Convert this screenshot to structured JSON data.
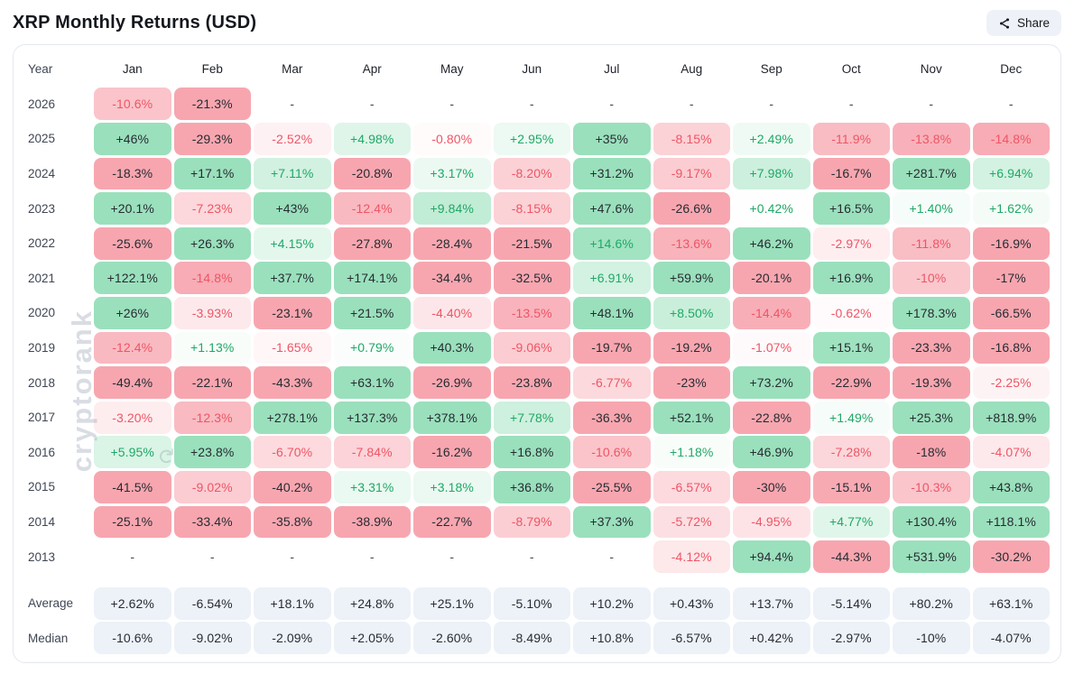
{
  "header": {
    "title": "XRP Monthly Returns (USD)",
    "share_label": "Share"
  },
  "watermark": {
    "text": "cryptorank",
    "icon": "circular-arrow"
  },
  "colors": {
    "positive": "#2BBF72",
    "negative": "#EF4458",
    "positive_text": "#1FA866",
    "negative_text": "#EE5565",
    "dark_text": "#272B33",
    "summary_bg": "#EDF1F8",
    "card_border": "#E4E8EF",
    "button_bg": "#EEF2F8",
    "watermark_color": "#D9DDE3"
  },
  "chart_data": {
    "type": "heatmap",
    "title": "XRP Monthly Returns (USD)",
    "unit": "%",
    "row_header": "Year",
    "columns": [
      "Jan",
      "Feb",
      "Mar",
      "Apr",
      "May",
      "Jun",
      "Jul",
      "Aug",
      "Sep",
      "Oct",
      "Nov",
      "Dec"
    ],
    "missing_placeholder": "-",
    "rows": [
      {
        "year": "2026",
        "values": [
          "-10.6%",
          "-21.3%",
          null,
          null,
          null,
          null,
          null,
          null,
          null,
          null,
          null,
          null
        ]
      },
      {
        "year": "2025",
        "values": [
          "+46%",
          "-29.3%",
          "-2.52%",
          "+4.98%",
          "-0.80%",
          "+2.95%",
          "+35%",
          "-8.15%",
          "+2.49%",
          "-11.9%",
          "-13.8%",
          "-14.8%"
        ]
      },
      {
        "year": "2024",
        "values": [
          "-18.3%",
          "+17.1%",
          "+7.11%",
          "-20.8%",
          "+3.17%",
          "-8.20%",
          "+31.2%",
          "-9.17%",
          "+7.98%",
          "-16.7%",
          "+281.7%",
          "+6.94%"
        ]
      },
      {
        "year": "2023",
        "values": [
          "+20.1%",
          "-7.23%",
          "+43%",
          "-12.4%",
          "+9.84%",
          "-8.15%",
          "+47.6%",
          "-26.6%",
          "+0.42%",
          "+16.5%",
          "+1.40%",
          "+1.62%"
        ]
      },
      {
        "year": "2022",
        "values": [
          "-25.6%",
          "+26.3%",
          "+4.15%",
          "-27.8%",
          "-28.4%",
          "-21.5%",
          "+14.6%",
          "-13.6%",
          "+46.2%",
          "-2.97%",
          "-11.8%",
          "-16.9%"
        ]
      },
      {
        "year": "2021",
        "values": [
          "+122.1%",
          "-14.8%",
          "+37.7%",
          "+174.1%",
          "-34.4%",
          "-32.5%",
          "+6.91%",
          "+59.9%",
          "-20.1%",
          "+16.9%",
          "-10%",
          "-17%"
        ]
      },
      {
        "year": "2020",
        "values": [
          "+26%",
          "-3.93%",
          "-23.1%",
          "+21.5%",
          "-4.40%",
          "-13.5%",
          "+48.1%",
          "+8.50%",
          "-14.4%",
          "-0.62%",
          "+178.3%",
          "-66.5%"
        ]
      },
      {
        "year": "2019",
        "values": [
          "-12.4%",
          "+1.13%",
          "-1.65%",
          "+0.79%",
          "+40.3%",
          "-9.06%",
          "-19.7%",
          "-19.2%",
          "-1.07%",
          "+15.1%",
          "-23.3%",
          "-16.8%"
        ]
      },
      {
        "year": "2018",
        "values": [
          "-49.4%",
          "-22.1%",
          "-43.3%",
          "+63.1%",
          "-26.9%",
          "-23.8%",
          "-6.77%",
          "-23%",
          "+73.2%",
          "-22.9%",
          "-19.3%",
          "-2.25%"
        ]
      },
      {
        "year": "2017",
        "values": [
          "-3.20%",
          "-12.3%",
          "+278.1%",
          "+137.3%",
          "+378.1%",
          "+7.78%",
          "-36.3%",
          "+52.1%",
          "-22.8%",
          "+1.49%",
          "+25.3%",
          "+818.9%"
        ]
      },
      {
        "year": "2016",
        "values": [
          "+5.95%",
          "+23.8%",
          "-6.70%",
          "-7.84%",
          "-16.2%",
          "+16.8%",
          "-10.6%",
          "+1.18%",
          "+46.9%",
          "-7.28%",
          "-18%",
          "-4.07%"
        ]
      },
      {
        "year": "2015",
        "values": [
          "-41.5%",
          "-9.02%",
          "-40.2%",
          "+3.31%",
          "+3.18%",
          "+36.8%",
          "-25.5%",
          "-6.57%",
          "-30%",
          "-15.1%",
          "-10.3%",
          "+43.8%"
        ]
      },
      {
        "year": "2014",
        "values": [
          "-25.1%",
          "-33.4%",
          "-35.8%",
          "-38.9%",
          "-22.7%",
          "-8.79%",
          "+37.3%",
          "-5.72%",
          "-4.95%",
          "+4.77%",
          "+130.4%",
          "+118.1%"
        ]
      },
      {
        "year": "2013",
        "values": [
          null,
          null,
          null,
          null,
          null,
          null,
          null,
          "-4.12%",
          "+94.4%",
          "-44.3%",
          "+531.9%",
          "-30.2%"
        ]
      }
    ],
    "summary_rows": [
      {
        "label": "Average",
        "values": [
          "+2.62%",
          "-6.54%",
          "+18.1%",
          "+24.8%",
          "+25.1%",
          "-5.10%",
          "+10.2%",
          "+0.43%",
          "+13.7%",
          "-5.14%",
          "+80.2%",
          "+63.1%"
        ]
      },
      {
        "label": "Median",
        "values": [
          "-10.6%",
          "-9.02%",
          "-2.09%",
          "+2.05%",
          "-2.60%",
          "-8.49%",
          "+10.8%",
          "-6.57%",
          "+0.42%",
          "-2.97%",
          "-10%",
          "-4.07%"
        ]
      }
    ]
  }
}
